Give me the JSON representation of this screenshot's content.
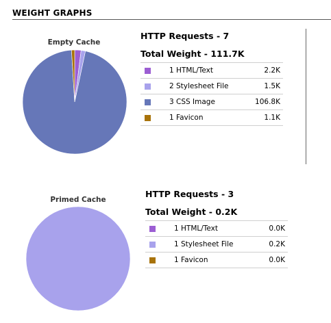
{
  "title": "WEIGHT GRAPHS",
  "graphs": [
    {
      "caption": "Empty Cache",
      "requests": "HTTP Requests - 7",
      "total": "Total Weight - 111.7K",
      "components": [
        {
          "label": "1 HTML/Text",
          "size": "2.2K",
          "color": "#9c5ed3",
          "kb": 2.2
        },
        {
          "label": "2 Stylesheet File",
          "size": "1.5K",
          "color": "#a8a2ec",
          "kb": 1.5
        },
        {
          "label": "3 CSS Image",
          "size": "106.8K",
          "color": "#6677b8",
          "kb": 106.8
        },
        {
          "label": "1 Favicon",
          "size": "1.1K",
          "color": "#a8730a",
          "kb": 1.1
        }
      ]
    },
    {
      "caption": "Primed Cache",
      "requests": "HTTP Requests - 3",
      "total": "Total Weight - 0.2K",
      "components": [
        {
          "label": "1 HTML/Text",
          "size": "0.0K",
          "color": "#9c5ed3",
          "kb": 0.0
        },
        {
          "label": "1 Stylesheet File",
          "size": "0.2K",
          "color": "#a8a2ec",
          "kb": 0.2
        },
        {
          "label": "1 Favicon",
          "size": "0.0K",
          "color": "#a8730a",
          "kb": 0.0
        }
      ]
    }
  ]
}
